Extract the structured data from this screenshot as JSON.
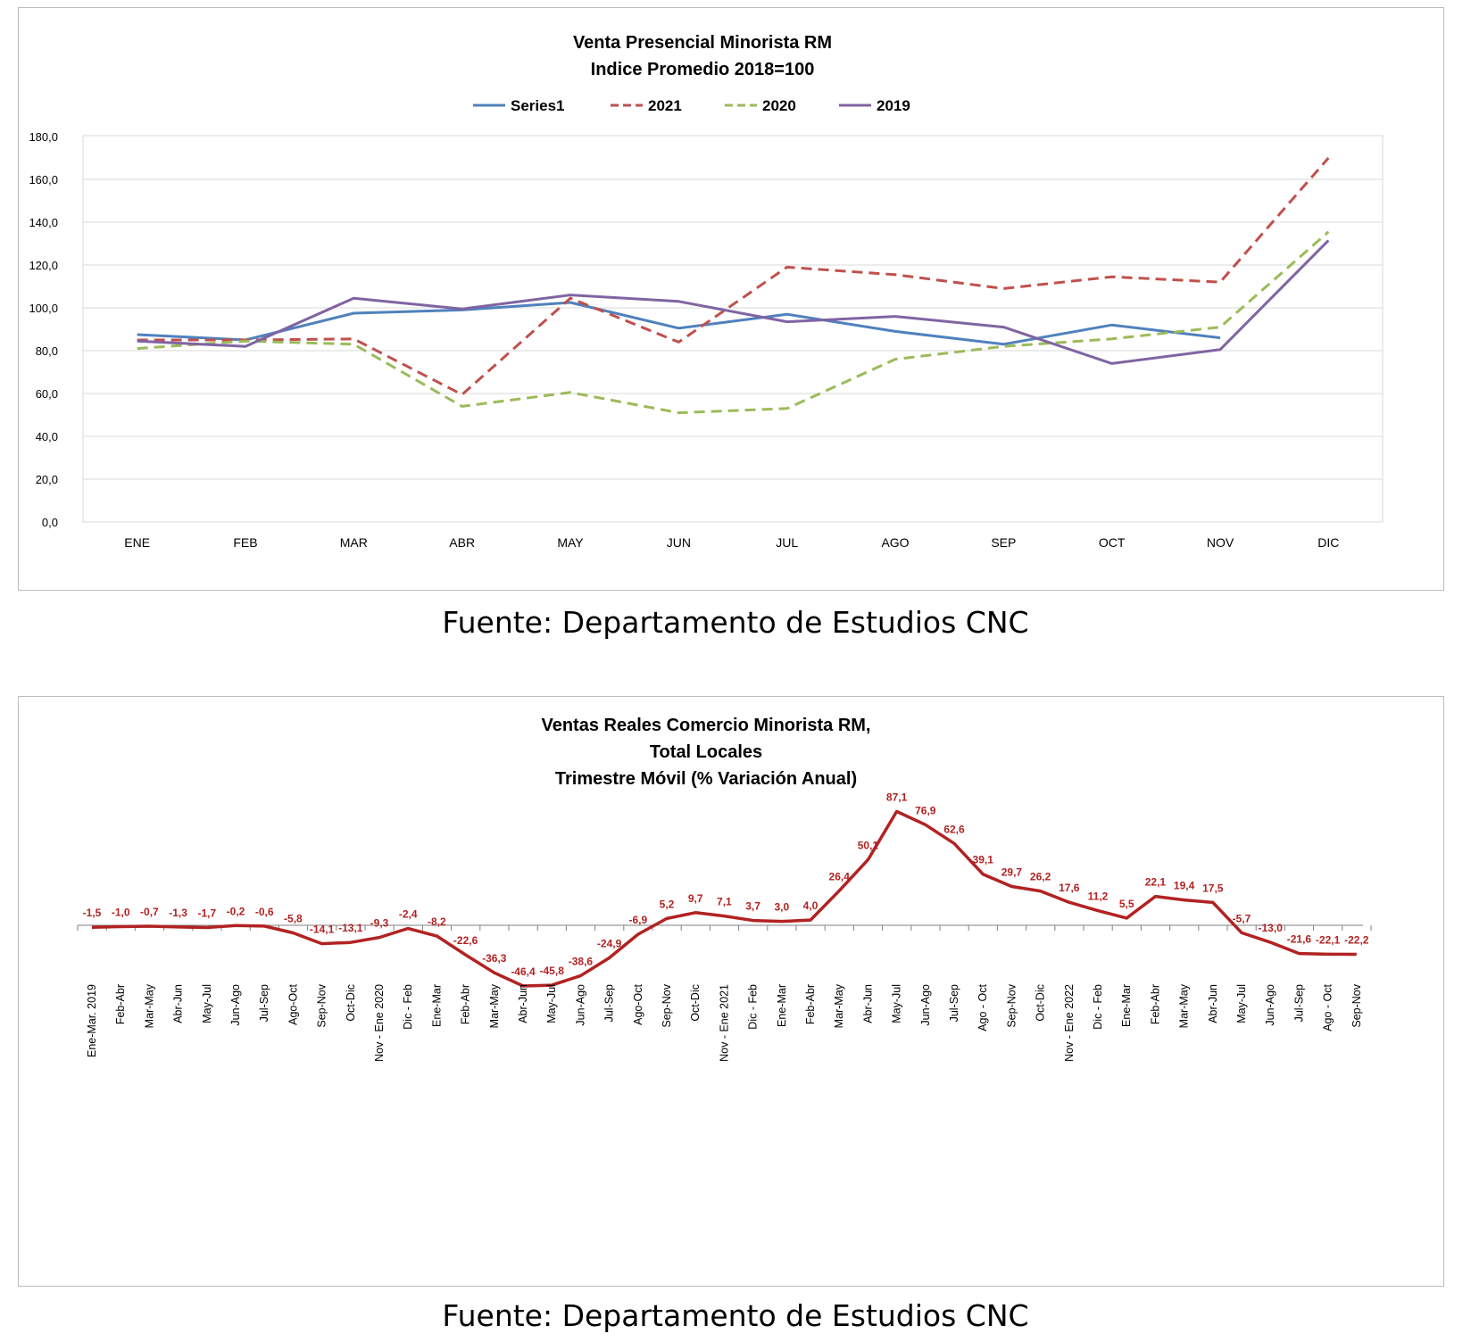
{
  "chart_data": [
    {
      "type": "line",
      "title": "Venta Presencial Minorista RM",
      "subtitle": "Indice Promedio 2018=100",
      "categories": [
        "ENE",
        "FEB",
        "MAR",
        "ABR",
        "MAY",
        "JUN",
        "JUL",
        "AGO",
        "SEP",
        "OCT",
        "NOV",
        "DIC"
      ],
      "y_tick_labels": [
        "0,0",
        "20,0",
        "40,0",
        "60,0",
        "80,0",
        "100,0",
        "120,0",
        "140,0",
        "160,0",
        "180,0"
      ],
      "ylim": [
        0,
        180
      ],
      "grid": true,
      "legend_position": "top",
      "series": [
        {
          "name": "Series1",
          "color": "#4f81bd",
          "style": "solid",
          "values": [
            87.5,
            85.0,
            97.5,
            99.0,
            102.5,
            90.5,
            97.0,
            89.0,
            83.0,
            92.0,
            86.0,
            null
          ]
        },
        {
          "name": "2021",
          "color": "#c0504d",
          "style": "dashed",
          "values": [
            85.0,
            85.0,
            85.5,
            59.5,
            104.5,
            84.0,
            119.0,
            115.5,
            109.0,
            114.5,
            112.0,
            170.0
          ]
        },
        {
          "name": "2020",
          "color": "#9bbb59",
          "style": "dashed",
          "values": [
            81.0,
            84.5,
            83.0,
            54.0,
            60.5,
            51.0,
            53.0,
            76.0,
            82.0,
            85.5,
            91.0,
            135.5
          ]
        },
        {
          "name": "2019",
          "color": "#8064a2",
          "style": "solid",
          "values": [
            84.5,
            82.0,
            104.5,
            99.5,
            106.0,
            103.0,
            93.5,
            96.0,
            91.0,
            74.0,
            80.5,
            131.5
          ]
        }
      ]
    },
    {
      "type": "line",
      "title": "Ventas Reales Comercio Minorista RM,",
      "subtitle": "Total Locales",
      "subtitle2": "Trimestre Móvil (% Variación Anual)",
      "categories": [
        "Ene-Mar. 2019",
        "Feb-Abr",
        "Mar-May",
        "Abr-Jun",
        "May-Jul",
        "Jun-Ago",
        "Jul-Sep",
        "Ago-Oct",
        "Sep-Nov",
        "Oct-Dic",
        "Nov - Ene 2020",
        "Dic - Feb",
        "Ene-Mar",
        "Feb-Abr",
        "Mar-May",
        "Abr-Jun",
        "May-Jul",
        "Jun-Ago",
        "Jul-Sep",
        "Ago-Oct",
        "Sep-Nov",
        "Oct-Dic",
        "Nov - Ene 2021",
        "Dic - Feb",
        "Ene-Mar",
        "Feb-Abr",
        "Mar-May",
        "Abr-Jun",
        "May-Jul",
        "Jun-Ago",
        "Jul-Sep",
        "Ago - Oct",
        "Sep-Nov",
        "Oct-Dic",
        "Nov - Ene 2022",
        "Dic - Feb",
        "Ene-Mar",
        "Feb-Abr",
        "Mar-May",
        "Abr-Jun",
        "May-Jul",
        "Jun-Ago",
        "Jul-Sep",
        "Ago - Oct",
        "Sep-Nov"
      ],
      "values": [
        -1.5,
        -1.0,
        -0.7,
        -1.3,
        -1.7,
        -0.2,
        -0.6,
        -5.8,
        -14.1,
        -13.1,
        -9.3,
        -2.4,
        -8.2,
        -22.6,
        -36.3,
        -46.4,
        -45.8,
        -38.6,
        -24.9,
        -6.9,
        5.2,
        9.7,
        7.1,
        3.7,
        3.0,
        4.0,
        26.4,
        50.1,
        87.1,
        76.9,
        62.6,
        39.1,
        29.7,
        26.2,
        17.6,
        11.2,
        5.5,
        22.1,
        19.4,
        17.5,
        -5.7,
        -13.0,
        -21.6,
        -22.1,
        -22.2
      ],
      "data_labels": [
        "-1,5",
        "-1,0",
        "-0,7",
        "-1,3",
        "-1,7",
        "-0,2",
        "-0,6",
        "-5,8",
        "-14,1",
        "-13,1",
        "-9,3",
        "-2,4",
        "-8,2",
        "-22,6",
        "-36,3",
        "-46,4",
        "-45,8",
        "-38,6",
        "-24,9",
        "-6,9",
        "5,2",
        "9,7",
        "7,1",
        "3,7",
        "3,0",
        "4,0",
        "26,4",
        "50,1",
        "87,1",
        "76,9",
        "62,6",
        "39,1",
        "29,7",
        "26,2",
        "17,6",
        "11,2",
        "5,5",
        "22,1",
        "19,4",
        "17,5",
        "-5,7",
        "-13,0",
        "-21,6",
        "-22,1",
        "-22,2"
      ],
      "color": "#b22222",
      "grid": false
    }
  ],
  "sources": [
    "Fuente: Departamento de Estudios CNC",
    "Fuente: Departamento de Estudios CNC"
  ]
}
